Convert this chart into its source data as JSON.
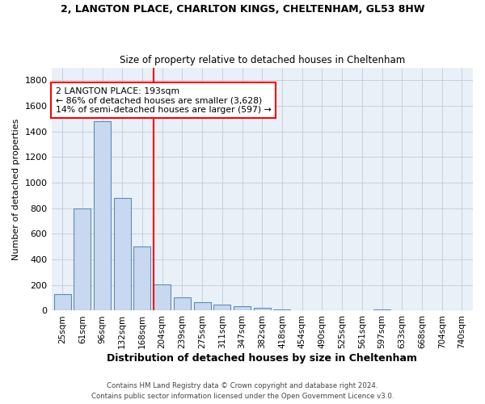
{
  "title_line1": "2, LANGTON PLACE, CHARLTON KINGS, CHELTENHAM, GL53 8HW",
  "title_line2": "Size of property relative to detached houses in Cheltenham",
  "xlabel": "Distribution of detached houses by size in Cheltenham",
  "ylabel": "Number of detached properties",
  "bar_color": "#c8d8f0",
  "bar_edge_color": "#5b8db8",
  "background_color": "#eaf0f8",
  "grid_color": "#c0ccd8",
  "categories": [
    "25sqm",
    "61sqm",
    "96sqm",
    "132sqm",
    "168sqm",
    "204sqm",
    "239sqm",
    "275sqm",
    "311sqm",
    "347sqm",
    "382sqm",
    "418sqm",
    "454sqm",
    "490sqm",
    "525sqm",
    "561sqm",
    "597sqm",
    "633sqm",
    "668sqm",
    "704sqm",
    "740sqm"
  ],
  "values": [
    130,
    800,
    1480,
    880,
    500,
    205,
    105,
    65,
    48,
    35,
    20,
    12,
    0,
    0,
    0,
    0,
    12,
    0,
    0,
    0,
    0
  ],
  "red_line_x": 4.575,
  "annotation_text": "2 LANGTON PLACE: 193sqm\n← 86% of detached houses are smaller (3,628)\n14% of semi-detached houses are larger (597) →",
  "ylim": [
    0,
    1900
  ],
  "yticks": [
    0,
    200,
    400,
    600,
    800,
    1000,
    1200,
    1400,
    1600,
    1800
  ],
  "footer_line1": "Contains HM Land Registry data © Crown copyright and database right 2024.",
  "footer_line2": "Contains public sector information licensed under the Open Government Licence v3.0."
}
